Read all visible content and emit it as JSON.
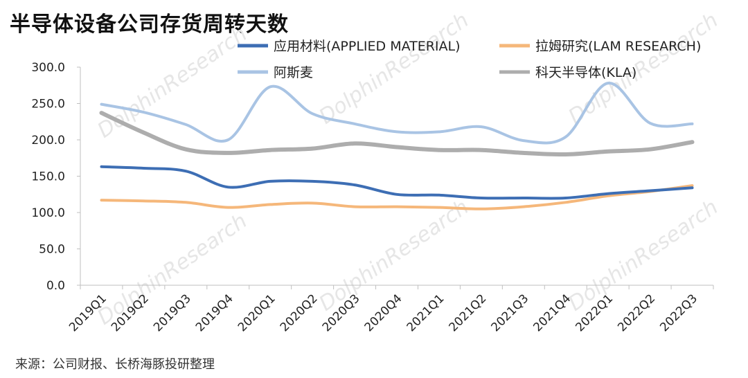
{
  "title": "半导体设备公司存货周转天数",
  "source": "来源：公司财报、长桥海豚投研整理",
  "watermark": "DolphinResearch",
  "chart_data": {
    "type": "line",
    "title": "半导体设备公司存货周转天数",
    "xlabel": "",
    "ylabel": "",
    "ylim": [
      0,
      300
    ],
    "ytick_step": 50,
    "categories": [
      "2019Q1",
      "2019Q2",
      "2019Q3",
      "2019Q4",
      "2020Q1",
      "2020Q2",
      "2020Q3",
      "2020Q4",
      "2021Q1",
      "2021Q2",
      "2021Q3",
      "2021Q4",
      "2022Q1",
      "2022Q2",
      "2022Q3"
    ],
    "series": [
      {
        "name": "应用材料(APPLIED MATERIAL)",
        "color": "#3d6eb4",
        "values": [
          163,
          161,
          157,
          135,
          143,
          143,
          138,
          125,
          124,
          120,
          120,
          120,
          126,
          130,
          134
        ]
      },
      {
        "name": "拉姆研究(LAM RESEARCH)",
        "color": "#f5b77a",
        "values": [
          117,
          116,
          114,
          107,
          111,
          113,
          108,
          108,
          107,
          105,
          108,
          114,
          123,
          129,
          137
        ]
      },
      {
        "name": "阿斯麦",
        "color": "#a9c4e4",
        "values": [
          249,
          238,
          221,
          200,
          273,
          236,
          222,
          211,
          211,
          218,
          199,
          204,
          278,
          223,
          222
        ]
      },
      {
        "name": "科天半导体(KLA)",
        "color": "#adadad",
        "values": [
          237,
          210,
          187,
          182,
          186,
          188,
          195,
          190,
          186,
          186,
          182,
          180,
          184,
          187,
          197
        ]
      }
    ],
    "legend": "top, two columns"
  }
}
